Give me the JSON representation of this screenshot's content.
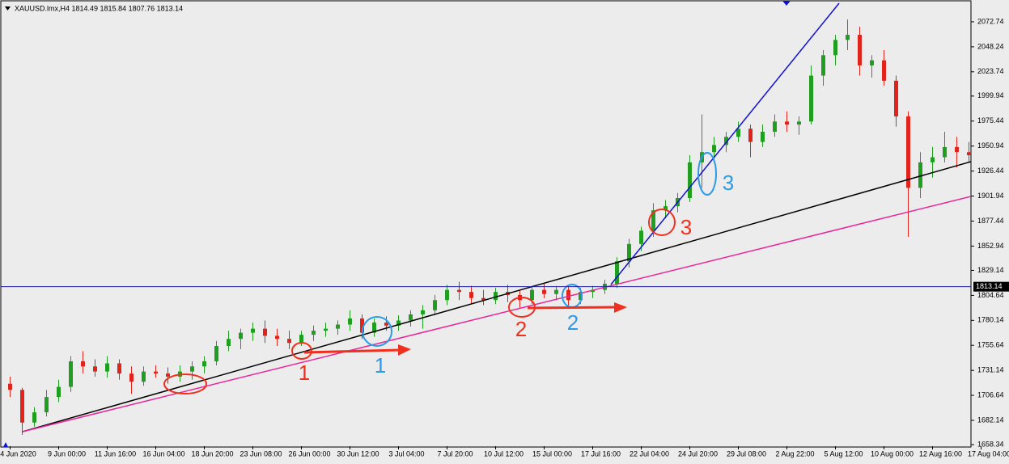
{
  "chart_data": {
    "type": "candlestick",
    "title": "XAUUSD.lmx,H4  1814.49 1815.84 1807.76 1813.14",
    "categories": [
      "4 Jun 2020",
      null,
      null,
      null,
      "9 Jun 00:00",
      null,
      null,
      null,
      "11 Jun 16:00",
      null,
      null,
      null,
      "16 Jun 04:00",
      null,
      null,
      null,
      "18 Jun 20:00",
      null,
      null,
      null,
      "23 Jun 08:00",
      null,
      null,
      null,
      "26 Jun 00:00",
      null,
      null,
      null,
      "30 Jun 12:00",
      null,
      null,
      null,
      "3 Jul 04:00",
      null,
      null,
      null,
      "7 Jul 20:00",
      null,
      null,
      null,
      "10 Jul 12:00",
      null,
      null,
      null,
      "15 Jul 00:00",
      null,
      null,
      null,
      "17 Jul 16:00",
      null,
      null,
      null,
      "22 Jul 04:00",
      null,
      null,
      null,
      "24 Jul 20:00",
      null,
      null,
      null,
      "29 Jul 08:00",
      null,
      null,
      null,
      "2 Aug 22:00",
      null,
      null,
      null,
      "5 Aug 12:00",
      null,
      null,
      null,
      "10 Aug 00:00",
      null,
      null,
      null,
      "12 Aug 16:00",
      null,
      null,
      null,
      "17 Aug 04:00"
    ],
    "open": [
      1718,
      1712,
      1680,
      1690,
      1705,
      1715,
      1740,
      1735,
      1730,
      1738,
      1728,
      1720,
      1730,
      1728,
      1725,
      1730,
      1735,
      1740,
      1755,
      1762,
      1768,
      1772,
      1765,
      1762,
      1758,
      1766,
      1770,
      1772,
      1776,
      1782,
      1768,
      1778,
      1775,
      1780,
      1786,
      1790,
      1800,
      1810,
      1808,
      1802,
      1800,
      1808,
      1805,
      1800,
      1810,
      1806,
      1810,
      1800,
      1808,
      1810,
      1816,
      1838,
      1855,
      1868,
      1888,
      1892,
      1900,
      1935,
      1945,
      1952,
      1960,
      1968,
      1955,
      1965,
      1975,
      1972,
      1975,
      2020,
      2040,
      2055,
      2060,
      2030,
      2035,
      2015,
      1980,
      1910,
      1935,
      1940,
      1950,
      1945,
      1942
    ],
    "high": [
      1725,
      1714,
      1695,
      1712,
      1722,
      1745,
      1750,
      1742,
      1745,
      1742,
      1735,
      1735,
      1736,
      1734,
      1736,
      1740,
      1745,
      1760,
      1770,
      1772,
      1778,
      1780,
      1772,
      1770,
      1770,
      1775,
      1778,
      1780,
      1790,
      1786,
      1782,
      1784,
      1785,
      1790,
      1795,
      1805,
      1815,
      1818,
      1814,
      1810,
      1812,
      1815,
      1810,
      1814,
      1816,
      1814,
      1814,
      1812,
      1814,
      1820,
      1842,
      1860,
      1872,
      1895,
      1898,
      1905,
      1942,
      1982,
      1960,
      1965,
      1975,
      1972,
      1972,
      1982,
      1985,
      1980,
      2030,
      2045,
      2060,
      2075,
      2068,
      2040,
      2045,
      2020,
      1985,
      1945,
      1950,
      1965,
      1960,
      1955,
      1958
    ],
    "low": [
      1705,
      1668,
      1676,
      1686,
      1700,
      1710,
      1728,
      1725,
      1724,
      1722,
      1708,
      1716,
      1724,
      1718,
      1720,
      1722,
      1728,
      1736,
      1750,
      1752,
      1760,
      1758,
      1755,
      1752,
      1755,
      1760,
      1764,
      1766,
      1770,
      1762,
      1764,
      1770,
      1770,
      1774,
      1772,
      1785,
      1795,
      1800,
      1796,
      1795,
      1796,
      1798,
      1792,
      1796,
      1802,
      1800,
      1794,
      1796,
      1802,
      1806,
      1812,
      1832,
      1848,
      1862,
      1880,
      1886,
      1896,
      1910,
      1935,
      1945,
      1955,
      1940,
      1950,
      1960,
      1965,
      1962,
      1972,
      2010,
      2030,
      2045,
      2020,
      2018,
      2010,
      1970,
      1862,
      1900,
      1920,
      1935,
      1930,
      1935,
      1930
    ],
    "close": [
      1712,
      1680,
      1690,
      1705,
      1715,
      1740,
      1735,
      1730,
      1738,
      1728,
      1720,
      1730,
      1728,
      1725,
      1730,
      1735,
      1740,
      1755,
      1762,
      1768,
      1772,
      1765,
      1762,
      1758,
      1766,
      1770,
      1772,
      1776,
      1782,
      1768,
      1778,
      1775,
      1780,
      1786,
      1790,
      1800,
      1810,
      1808,
      1802,
      1800,
      1808,
      1805,
      1800,
      1810,
      1806,
      1810,
      1800,
      1808,
      1810,
      1816,
      1838,
      1855,
      1868,
      1888,
      1892,
      1900,
      1935,
      1945,
      1952,
      1960,
      1968,
      1955,
      1965,
      1975,
      1972,
      1975,
      2020,
      2040,
      2055,
      2060,
      2030,
      2035,
      2015,
      1980,
      1910,
      1935,
      1940,
      1950,
      1945,
      1942,
      1950
    ],
    "up_color": "#1f9e1f",
    "down_color": "#e0241b",
    "ylim": [
      1656.8,
      2094.1
    ],
    "yticks": [
      1658.34,
      1682.14,
      1706.64,
      1731.14,
      1755.64,
      1780.14,
      1804.64,
      1829.14,
      1852.94,
      1877.44,
      1901.94,
      1926.44,
      1950.94,
      1975.44,
      1999.94,
      2023.74,
      2048.24,
      2072.74
    ],
    "last_price": 1813.14,
    "last_price_color": "#1a1aa8",
    "annotations": [
      {
        "text": "1",
        "color": "#f0301e"
      },
      {
        "text": "1",
        "color": "#2a9be8"
      },
      {
        "text": "2",
        "color": "#f0301e"
      },
      {
        "text": "2",
        "color": "#2a9be8"
      },
      {
        "text": "3",
        "color": "#f0301e"
      },
      {
        "text": "3",
        "color": "#2a9be8"
      }
    ]
  }
}
